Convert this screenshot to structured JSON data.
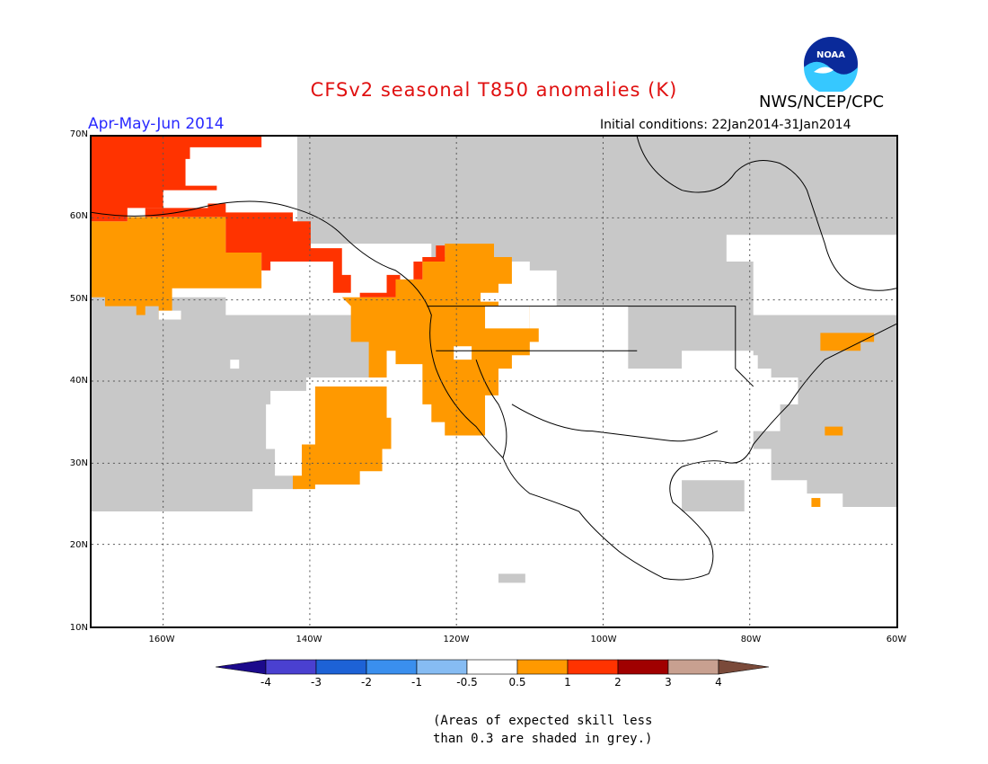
{
  "title": "CFSv2 seasonal T850 anomalies (K)",
  "period": "Apr-May-Jun 2014",
  "agency": "NWS/NCEP/CPC",
  "logo_text": "NOAA",
  "initial_conditions": "Initial conditions: 22Jan2014-31Jan2014",
  "lat_labels": [
    "70N",
    "60N",
    "50N",
    "40N",
    "30N",
    "20N",
    "10N"
  ],
  "lon_labels": [
    "160W",
    "140W",
    "120W",
    "100W",
    "80W",
    "60W"
  ],
  "colorbar": {
    "labels": [
      "-4",
      "-3",
      "-2",
      "-1",
      "-0.5",
      "0.5",
      "1",
      "2",
      "3",
      "4"
    ],
    "colors": [
      "#1c0a8c",
      "#4a40d0",
      "#1d62d6",
      "#3a8fee",
      "#86bcf3",
      "#ffffff",
      "#ff9900",
      "#ff3300",
      "#a00000",
      "#c8a090",
      "#7a4a3a"
    ]
  },
  "note": [
    "(Areas of expected skill less",
    "than 0.3 are shaded in grey.)"
  ]
}
